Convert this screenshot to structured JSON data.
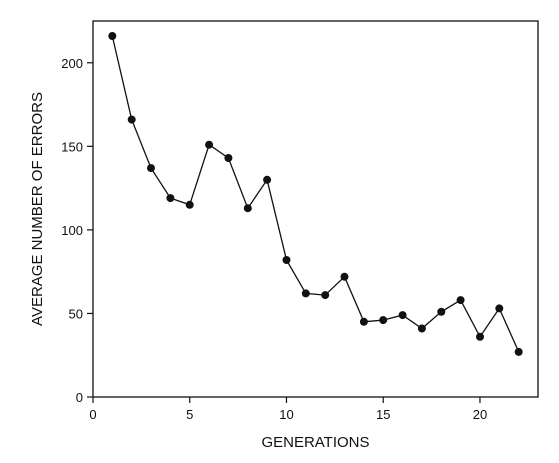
{
  "chart_data": {
    "type": "line",
    "xlabel": "GENERATIONS",
    "ylabel": "AVERAGE NUMBER OF ERRORS",
    "xlim": [
      0,
      23
    ],
    "ylim": [
      0,
      225
    ],
    "xticks": [
      0,
      5,
      10,
      15,
      20
    ],
    "yticks": [
      0,
      50,
      100,
      150,
      200
    ],
    "grid": false,
    "series": [
      {
        "x": [
          1,
          2,
          3,
          4,
          5,
          6,
          7,
          8,
          9,
          10,
          11,
          12,
          13,
          14,
          15,
          16,
          17,
          18,
          19,
          20,
          21,
          22
        ],
        "values": [
          216,
          166,
          137,
          119,
          115,
          151,
          143,
          113,
          130,
          82,
          62,
          61,
          72,
          45,
          46,
          49,
          41,
          51,
          58,
          36,
          53,
          27
        ],
        "color": "#111111",
        "marker": "circle"
      }
    ]
  }
}
